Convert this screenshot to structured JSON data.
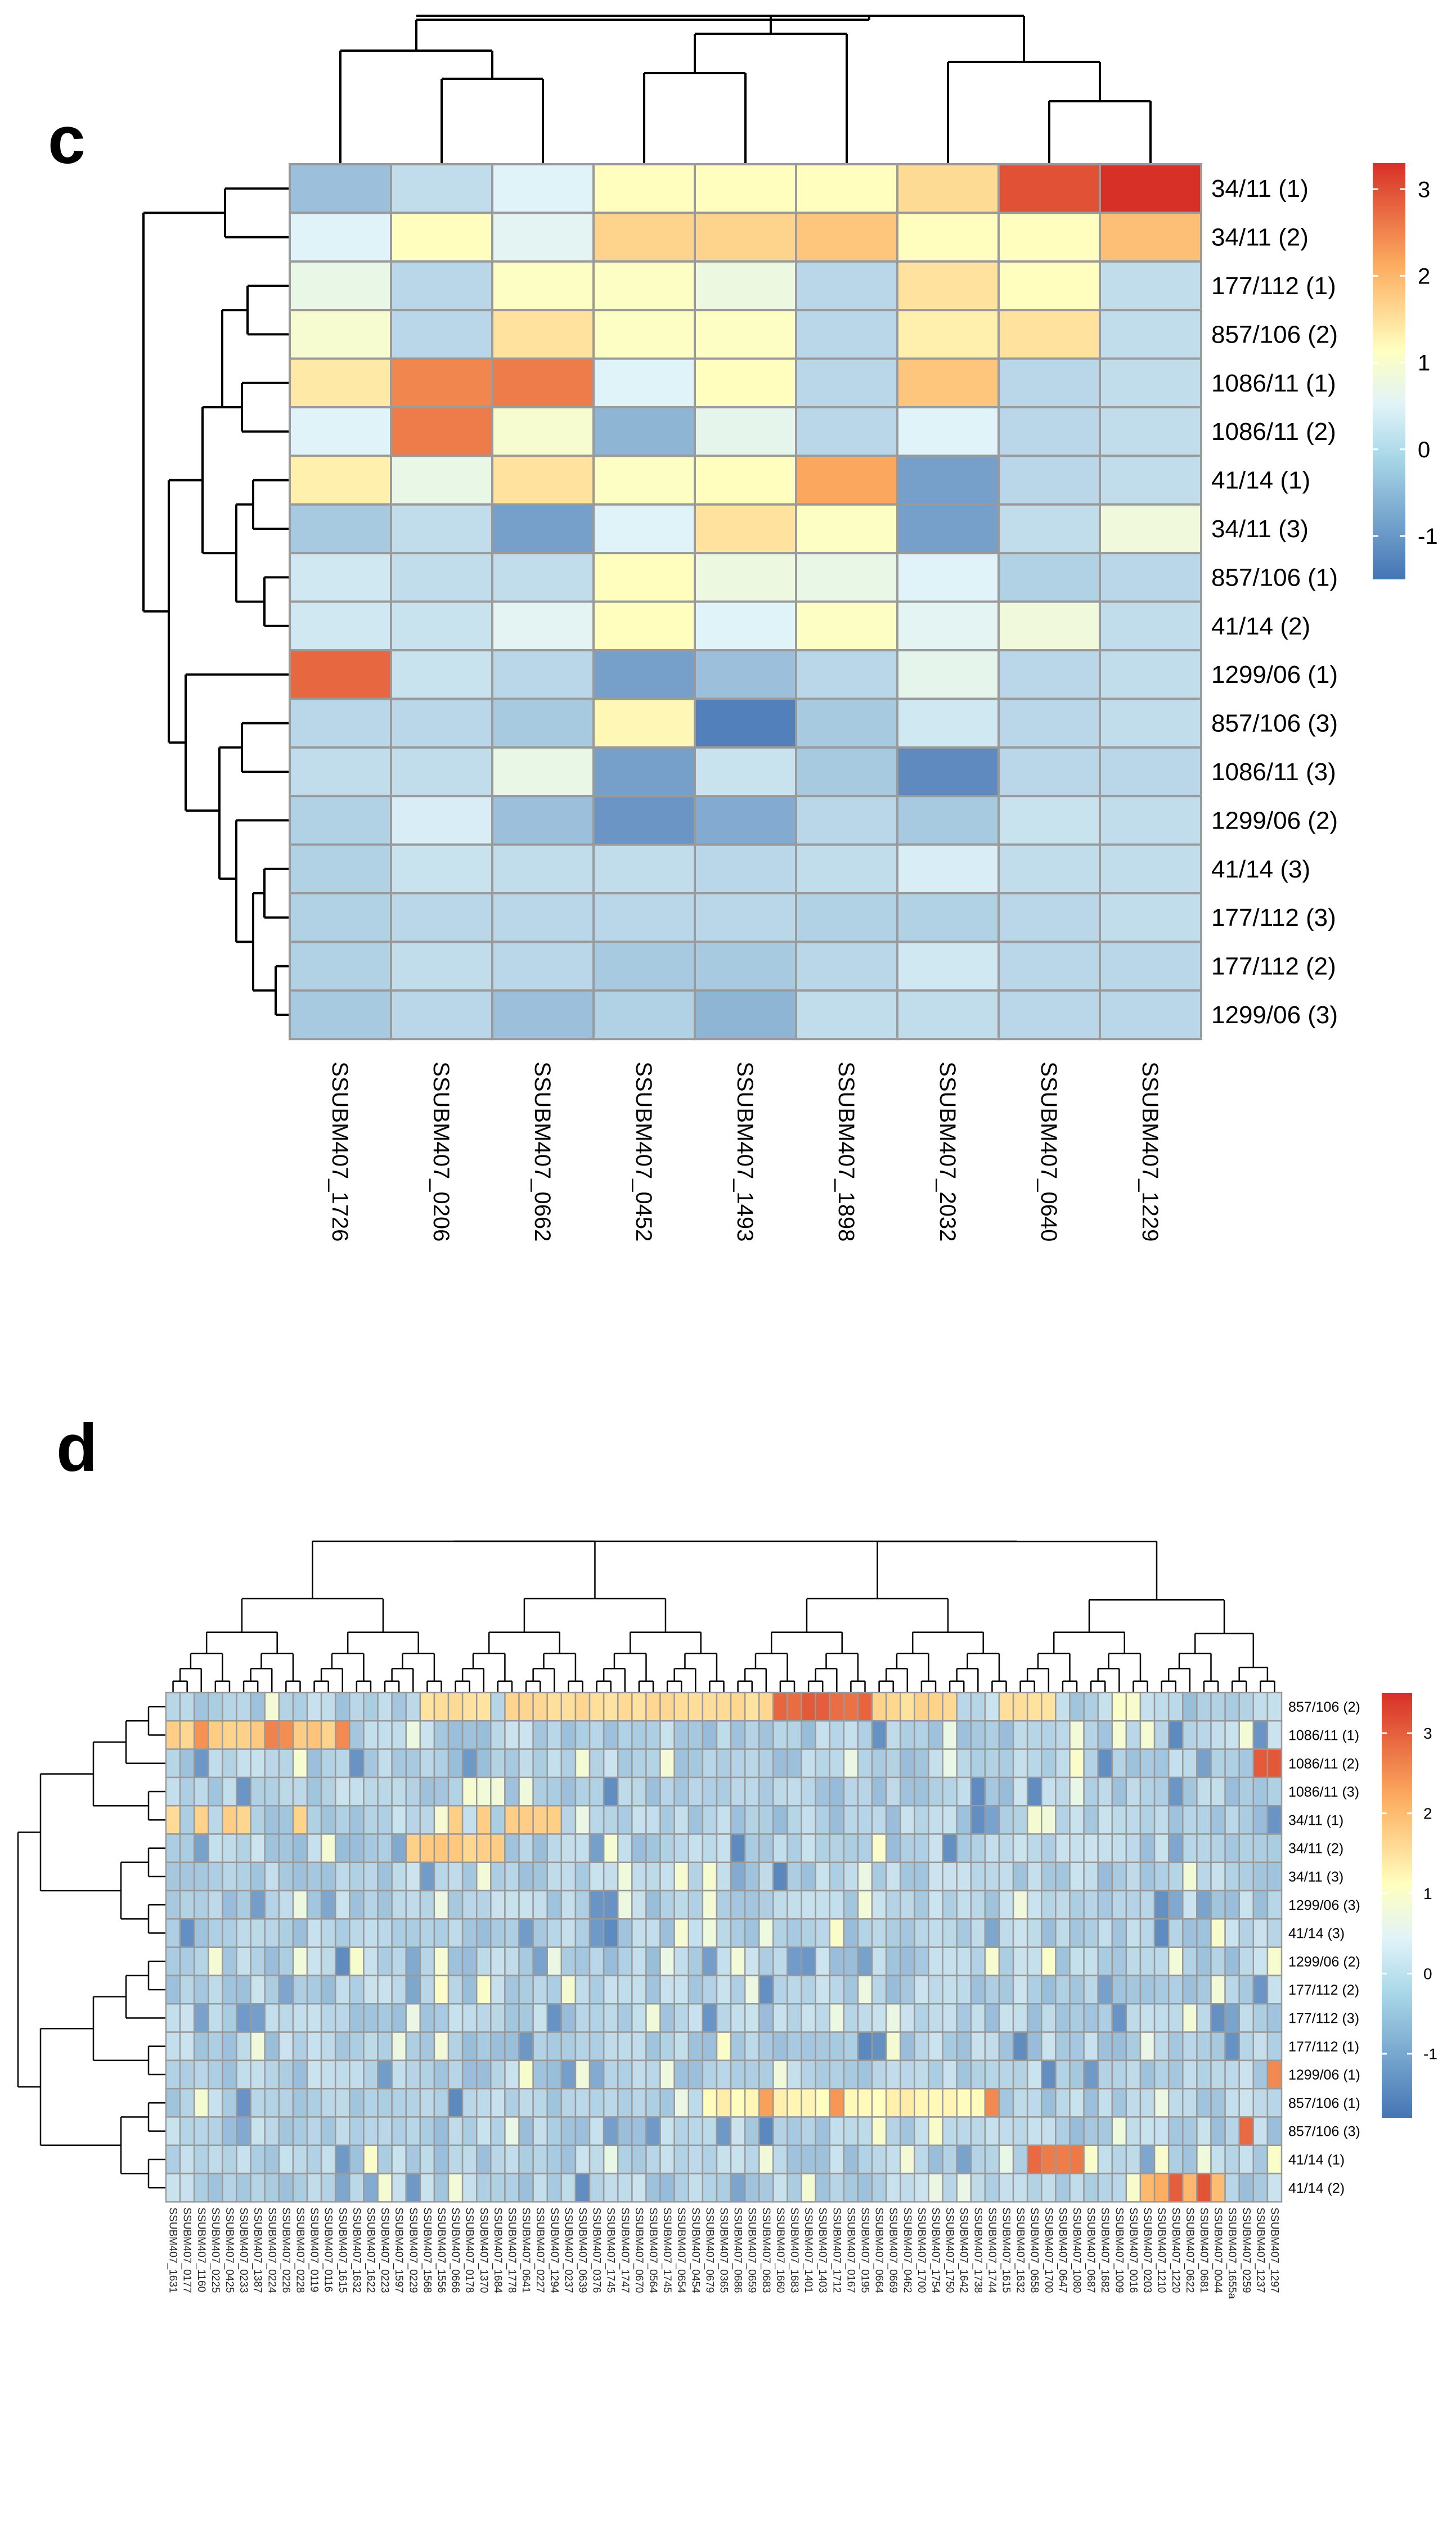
{
  "chart_data": [
    {
      "panel": "c",
      "type": "heatmap",
      "columns": [
        "SSUBM407_1726",
        "SSUBM407_0206",
        "SSUBM407_0662",
        "SSUBM407_0452",
        "SSUBM407_1493",
        "SSUBM407_1898",
        "SSUBM407_2032",
        "SSUBM407_0640",
        "SSUBM407_1229"
      ],
      "rows": [
        "34/11 (1)",
        "34/11 (2)",
        "177/112 (1)",
        "857/106 (2)",
        "1086/11 (1)",
        "1086/11 (2)",
        "41/14 (1)",
        "34/11 (3)",
        "857/106 (1)",
        "41/14 (2)",
        "1299/06 (1)",
        "857/106 (3)",
        "1086/11 (3)",
        "1299/06 (2)",
        "41/14 (3)",
        "177/112 (3)",
        "177/112 (2)",
        "1299/06 (3)"
      ],
      "values": [
        [
          -0.8,
          -0.4,
          0.0,
          1.0,
          1.0,
          1.0,
          1.5,
          3.0,
          3.3
        ],
        [
          0.0,
          1.0,
          0.1,
          1.6,
          1.6,
          1.8,
          1.0,
          1.0,
          1.9
        ],
        [
          0.3,
          -0.5,
          0.9,
          0.9,
          0.4,
          -0.5,
          1.4,
          1.0,
          -0.4
        ],
        [
          0.7,
          -0.5,
          1.4,
          0.9,
          0.9,
          -0.5,
          1.2,
          1.4,
          -0.4
        ],
        [
          1.3,
          2.5,
          2.6,
          0.0,
          1.0,
          -0.5,
          1.8,
          -0.5,
          -0.4
        ],
        [
          0.0,
          2.6,
          0.7,
          -0.9,
          0.2,
          -0.5,
          0.0,
          -0.5,
          -0.4
        ],
        [
          1.2,
          0.3,
          1.4,
          0.9,
          1.0,
          2.2,
          -1.1,
          -0.5,
          -0.4
        ],
        [
          -0.7,
          -0.4,
          -1.1,
          0.0,
          1.4,
          0.9,
          -1.1,
          -0.4,
          0.5
        ],
        [
          -0.2,
          -0.4,
          -0.4,
          1.0,
          0.4,
          0.3,
          0.0,
          -0.6,
          -0.5
        ],
        [
          -0.2,
          -0.3,
          0.1,
          1.0,
          0.0,
          0.9,
          0.1,
          0.5,
          -0.4
        ],
        [
          2.8,
          -0.3,
          -0.5,
          -1.1,
          -0.8,
          -0.5,
          0.2,
          -0.5,
          -0.4
        ],
        [
          -0.5,
          -0.5,
          -0.7,
          1.1,
          -1.4,
          -0.7,
          -0.2,
          -0.5,
          -0.4
        ],
        [
          -0.4,
          -0.4,
          0.3,
          -1.1,
          -0.3,
          -0.7,
          -1.3,
          -0.5,
          -0.5
        ],
        [
          -0.6,
          -0.1,
          -0.8,
          -1.2,
          -1.0,
          -0.5,
          -0.7,
          -0.3,
          -0.4
        ],
        [
          -0.6,
          -0.3,
          -0.4,
          -0.4,
          -0.5,
          -0.4,
          -0.1,
          -0.4,
          -0.4
        ],
        [
          -0.6,
          -0.5,
          -0.5,
          -0.5,
          -0.5,
          -0.6,
          -0.6,
          -0.5,
          -0.4
        ],
        [
          -0.6,
          -0.4,
          -0.5,
          -0.7,
          -0.7,
          -0.5,
          -0.2,
          -0.5,
          -0.5
        ],
        [
          -0.7,
          -0.5,
          -0.8,
          -0.6,
          -0.9,
          -0.4,
          -0.4,
          -0.5,
          -0.5
        ]
      ],
      "legend_ticks": [
        3,
        2,
        1,
        0,
        -1
      ],
      "color_range": [
        -1.5,
        3.3
      ],
      "colors": {
        "low": "#4575b4",
        "mid": "#ffffbf",
        "high": "#d73027",
        "grid": "#9a9a9a"
      }
    },
    {
      "panel": "d",
      "type": "heatmap",
      "columns": [
        "SSUBM407_1631",
        "SSUBM407_0177",
        "SSUBM407_1160",
        "SSUBM407_0225",
        "SSUBM407_0425",
        "SSUBM407_0233",
        "SSUBM407_1387",
        "SSUBM407_0224",
        "SSUBM407_0226",
        "SSUBM407_0228",
        "SSUBM407_0119",
        "SSUBM407_0116",
        "SSUBM407_1615",
        "SSUBM407_1632",
        "SSUBM407_1622",
        "SSUBM407_0223",
        "SSUBM407_1597",
        "SSUBM407_0229",
        "SSUBM407_1568",
        "SSUBM407_1556",
        "SSUBM407_0666",
        "SSUBM407_0178",
        "SSUBM407_1370",
        "SSUBM407_1684",
        "SSUBM407_1778",
        "SSUBM407_0641",
        "SSUBM407_0227",
        "SSUBM407_1294",
        "SSUBM407_0237",
        "SSUBM407_0639",
        "SSUBM407_0376",
        "SSUBM407_1745",
        "SSUBM407_1747",
        "SSUBM407_0670",
        "SSUBM407_0564",
        "SSUBM407_1745",
        "SSUBM407_0654",
        "SSUBM407_0454",
        "SSUBM407_0679",
        "SSUBM407_0365",
        "SSUBM407_0686",
        "SSUBM407_0659",
        "SSUBM407_0683",
        "SSUBM407_1660",
        "SSUBM407_1683",
        "SSUBM407_1401",
        "SSUBM407_1403",
        "SSUBM407_1712",
        "SSUBM407_0167",
        "SSUBM407_0195",
        "SSUBM407_0664",
        "SSUBM407_0669",
        "SSUBM407_0462",
        "SSUBM407_1700",
        "SSUBM407_1754",
        "SSUBM407_1750",
        "SSUBM407_1642",
        "SSUBM407_1738",
        "SSUBM407_1744",
        "SSUBM407_1615",
        "SSUBM407_1632",
        "SSUBM407_0658",
        "SSUBM407_1700",
        "SSUBM407_0647",
        "SSUBM407_1080",
        "SSUBM407_0687",
        "SSUBM407_1682",
        "SSUBM407_1009",
        "SSUBM407_0016",
        "SSUBM407_0203",
        "SSUBM407_1210",
        "SSUBM407_1220",
        "SSUBM407_0622",
        "SSUBM407_0681",
        "SSUBM407_0044",
        "SSUBM407_1655a",
        "SSUBM407_0259",
        "SSUBM407_1237",
        "SSUBM407_1297"
      ],
      "rows": [
        "857/106 (2)",
        "1086/11 (1)",
        "1086/11 (2)",
        "1086/11 (3)",
        "34/11 (1)",
        "34/11 (2)",
        "34/11 (3)",
        "1299/06 (3)",
        "41/14 (3)",
        "1299/06 (2)",
        "177/112 (2)",
        "177/112 (3)",
        "177/112 (1)",
        "1299/06 (1)",
        "857/106 (1)",
        "857/106 (3)",
        "41/14 (1)",
        "41/14 (2)"
      ],
      "hot_cells": [
        {
          "row": 0,
          "cols": [
            18,
            19,
            20,
            21,
            22,
            24,
            25,
            26,
            27,
            28,
            29,
            30,
            31,
            32,
            33,
            34,
            35,
            36,
            37,
            38,
            39,
            40,
            41,
            42,
            43,
            44,
            45,
            46,
            47,
            48,
            49,
            50,
            51,
            52,
            53,
            54,
            55,
            59,
            60,
            61,
            62
          ],
          "value": 1.6
        },
        {
          "row": 0,
          "cols": [
            43,
            44,
            45,
            46,
            47,
            48,
            49
          ],
          "value": 3.0
        },
        {
          "row": 1,
          "cols": [
            0,
            1,
            2,
            3,
            4,
            5,
            6,
            7,
            8,
            9,
            10,
            11,
            12
          ],
          "value": 1.8
        },
        {
          "row": 1,
          "cols": [
            2,
            7,
            8,
            12
          ],
          "value": 2.6
        },
        {
          "row": 2,
          "cols": [
            77,
            78
          ],
          "value": 3.1
        },
        {
          "row": 4,
          "cols": [
            0,
            2,
            4,
            5,
            9,
            20,
            22,
            24,
            25,
            26,
            27
          ],
          "value": 1.7
        },
        {
          "row": 5,
          "cols": [
            17,
            18,
            19,
            20,
            21,
            22,
            23
          ],
          "value": 1.8
        },
        {
          "row": 14,
          "cols": [
            38,
            39,
            40,
            41,
            42,
            43,
            44,
            45,
            46,
            47,
            48,
            49,
            50,
            51,
            52,
            53,
            54,
            55,
            56,
            57
          ],
          "value": 1.2
        },
        {
          "row": 14,
          "cols": [
            42,
            47,
            58
          ],
          "value": 2.5
        },
        {
          "row": 16,
          "cols": [
            61,
            62,
            63,
            64
          ],
          "value": 2.9
        },
        {
          "row": 17,
          "cols": [
            69,
            70,
            71,
            72,
            73,
            74
          ],
          "value": 2.2
        },
        {
          "row": 17,
          "cols": [
            71,
            73
          ],
          "value": 3.0
        },
        {
          "row": 15,
          "cols": [
            76
          ],
          "value": 3.0
        },
        {
          "row": 13,
          "cols": [
            78
          ],
          "value": 2.5
        }
      ],
      "legend_ticks": [
        3,
        2,
        1,
        0,
        -1
      ],
      "color_range": [
        -1.8,
        3.5
      ],
      "colors": {
        "low": "#4575b4",
        "mid": "#ffffbf",
        "high": "#d73027",
        "grid": "#9a9a9a"
      }
    }
  ]
}
